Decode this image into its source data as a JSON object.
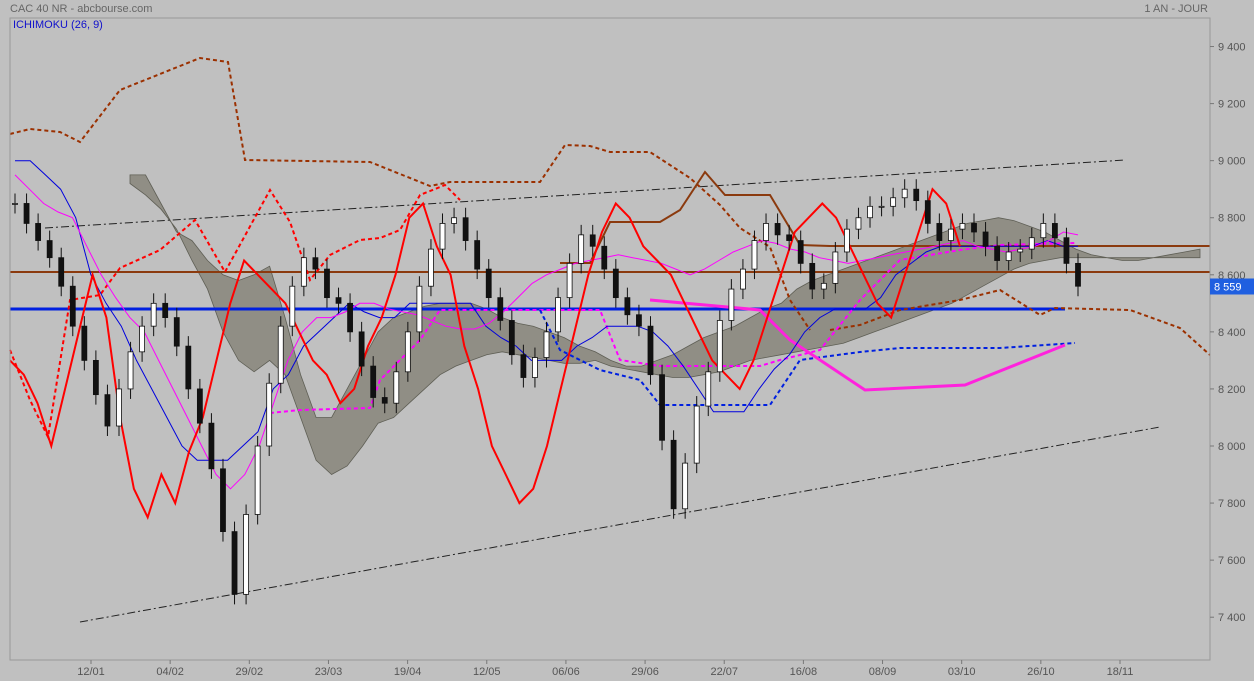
{
  "header": {
    "instrument": "CAC 40 NR - abcbourse.com",
    "period": "1 AN - JOUR",
    "indicator": "ICHIMOKU (26, 9)"
  },
  "chart_data": {
    "type": "candlestick",
    "title": "CAC 40 NR",
    "ylim": [
      7250,
      9500
    ],
    "y_ticks": [
      {
        "label": "9 400",
        "value": 9400
      },
      {
        "label": "9 200",
        "value": 9200
      },
      {
        "label": "9 000",
        "value": 9000
      },
      {
        "label": "8 800",
        "value": 8800
      },
      {
        "label": "8 600",
        "value": 8600
      },
      {
        "label": "8 400",
        "value": 8400
      },
      {
        "label": "8 200",
        "value": 8200
      },
      {
        "label": "8 000",
        "value": 8000
      },
      {
        "label": "7 800",
        "value": 7800
      },
      {
        "label": "7 600",
        "value": 7600
      },
      {
        "label": "7 400",
        "value": 7400
      }
    ],
    "x_ticks": [
      "12/01",
      "04/02",
      "29/02",
      "23/03",
      "19/04",
      "12/05",
      "06/06",
      "29/06",
      "22/07",
      "16/08",
      "08/09",
      "03/10",
      "26/10",
      "18/11"
    ],
    "last_price": {
      "label": "8 559",
      "value": 8559
    },
    "levels": {
      "support": 8480,
      "resistance": 8610
    },
    "close": [
      8850,
      8780,
      8720,
      8660,
      8560,
      8420,
      8300,
      8180,
      8070,
      8200,
      8330,
      8420,
      8500,
      8450,
      8350,
      8200,
      8080,
      7920,
      7700,
      7480,
      7760,
      8000,
      8220,
      8420,
      8560,
      8660,
      8620,
      8520,
      8500,
      8400,
      8280,
      8170,
      8150,
      8260,
      8400,
      8560,
      8690,
      8780,
      8800,
      8720,
      8620,
      8520,
      8440,
      8320,
      8240,
      8310,
      8400,
      8520,
      8640,
      8740,
      8700,
      8620,
      8520,
      8460,
      8420,
      8250,
      8020,
      7780,
      7940,
      8140,
      8260,
      8440,
      8550,
      8620,
      8720,
      8780,
      8740,
      8720,
      8640,
      8550,
      8570,
      8680,
      8760,
      8800,
      8840,
      8840,
      8870,
      8900,
      8860,
      8780,
      8720,
      8760,
      8780,
      8750,
      8700,
      8650,
      8680,
      8690,
      8730,
      8780,
      8730,
      8640,
      8560
    ],
    "series": [
      {
        "name": "Tenkan",
        "color": "#0000dd",
        "values": [
          9000,
          9000,
          8950,
          8900,
          8800,
          8600,
          8500,
          8420,
          8300,
          8200,
          8100,
          8000,
          7950,
          7950,
          7950,
          8000,
          8050,
          8200,
          8250,
          8350,
          8400,
          8450,
          8500,
          8470,
          8450,
          8450,
          8500,
          8500,
          8500,
          8500,
          8500,
          8420,
          8380,
          8350,
          8300,
          8300,
          8300,
          8350,
          8380,
          8420,
          8420,
          8420,
          8400,
          8350,
          8280,
          8200,
          8120,
          8120,
          8120,
          8200,
          8270,
          8320,
          8400,
          8450,
          8480,
          8480,
          8480,
          8520,
          8600,
          8640,
          8680,
          8700,
          8700,
          8700,
          8700,
          8700,
          8700,
          8700,
          8720,
          8700,
          8700
        ]
      },
      {
        "name": "Kijun",
        "color": "#ff00ff",
        "values": [
          8950,
          8900,
          8850,
          8820,
          8800,
          8700,
          8600,
          8520,
          8450,
          8400,
          8300,
          8200,
          8100,
          8000,
          7900,
          7850,
          7900,
          8000,
          8150,
          8300,
          8400,
          8450,
          8450,
          8470,
          8500,
          8500,
          8480,
          8470,
          8460,
          8440,
          8420,
          8410,
          8410,
          8430,
          8470,
          8520,
          8570,
          8600,
          8620,
          8640,
          8650,
          8660,
          8670,
          8660,
          8650,
          8640,
          8620,
          8600,
          8620,
          8650,
          8680,
          8700,
          8720,
          8710,
          8690,
          8680,
          8660,
          8650,
          8640,
          8650,
          8660,
          8670,
          8680,
          8690,
          8700,
          8710,
          8720,
          8700,
          8690,
          8680,
          8690,
          8700,
          8720,
          8750,
          8740
        ]
      },
      {
        "name": "Chikou",
        "color": "#ff0000",
        "values": [
          8300,
          8250,
          8150,
          8000,
          8200,
          8400,
          8600,
          8450,
          8100,
          7850,
          7750,
          7900,
          7800,
          7980,
          8100,
          8300,
          8500,
          8650,
          8600,
          8550,
          8500,
          8400,
          8300,
          8250,
          8150,
          8200,
          8350,
          8450,
          8600,
          8800,
          8850,
          8700,
          8600,
          8350,
          8200,
          8000,
          7900,
          7800,
          7850,
          8000,
          8200,
          8400,
          8600,
          8750,
          8850,
          8800,
          8700,
          8650,
          8600,
          8500,
          8400,
          8300,
          8250,
          8200,
          8300,
          8450,
          8600,
          8750,
          8800,
          8850,
          8800,
          8700,
          8600,
          8500,
          8450,
          8600,
          8750,
          8900,
          8850,
          8700
        ]
      }
    ],
    "annotations": [
      "support trendline",
      "resistance trendline",
      "ichimoku cloud"
    ]
  }
}
